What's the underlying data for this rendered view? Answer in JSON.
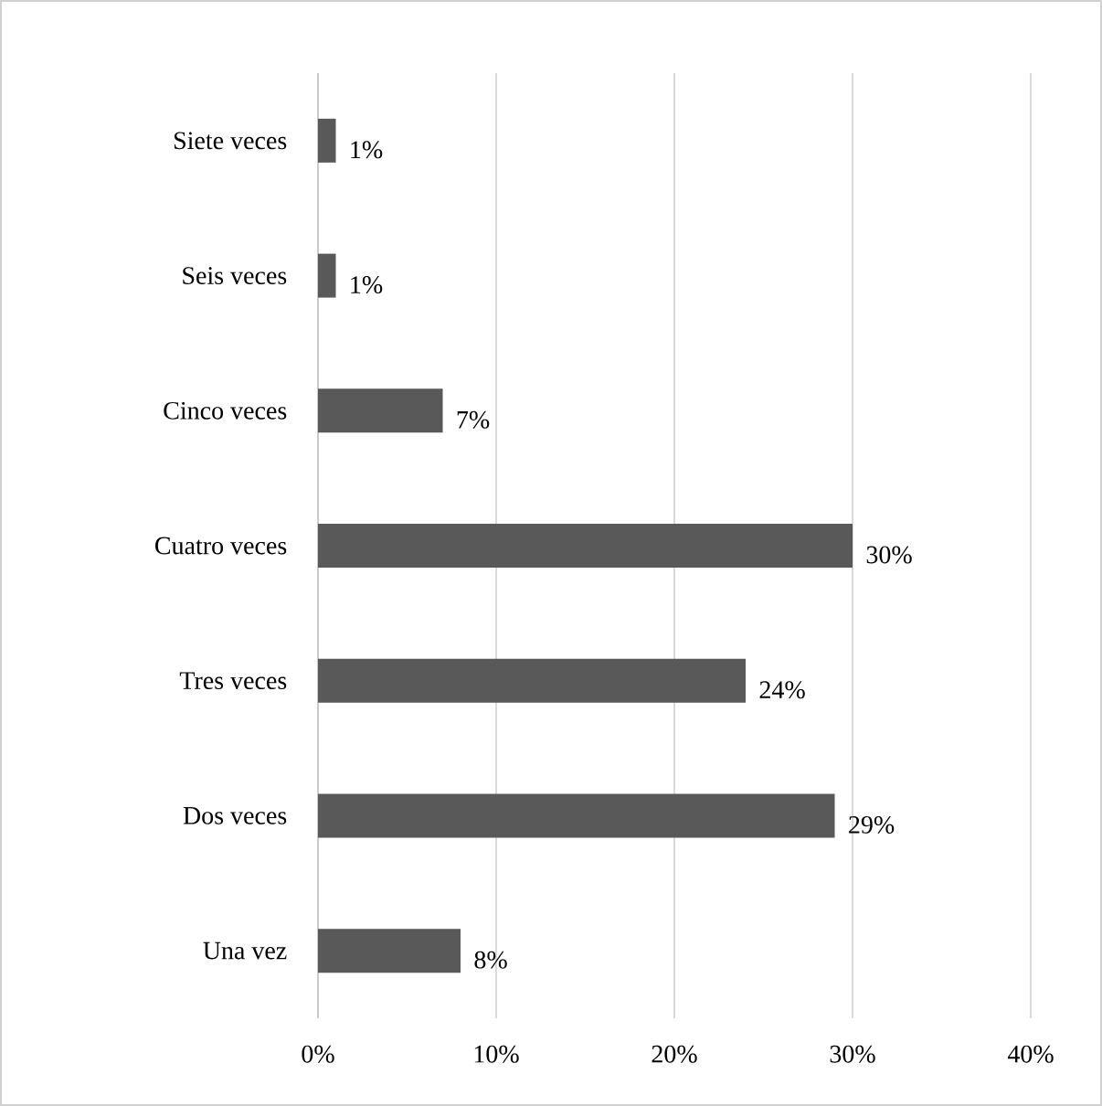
{
  "chart_data": {
    "type": "bar",
    "orientation": "horizontal",
    "categories": [
      "Siete veces",
      "Seis veces",
      "Cinco veces",
      "Cuatro veces",
      "Tres veces",
      "Dos veces",
      "Una vez"
    ],
    "values": [
      1,
      1,
      7,
      30,
      24,
      29,
      8
    ],
    "value_labels": [
      "1%",
      "1%",
      "7%",
      "30%",
      "24%",
      "29%",
      "8%"
    ],
    "color": "#595959",
    "xlim": [
      0,
      40
    ],
    "xticks": [
      {
        "value": 0,
        "label": "0%"
      },
      {
        "value": 10,
        "label": "10%"
      },
      {
        "value": 20,
        "label": "20%"
      },
      {
        "value": 30,
        "label": "30%"
      },
      {
        "value": 40,
        "label": "40%"
      }
    ],
    "grid": "x"
  }
}
